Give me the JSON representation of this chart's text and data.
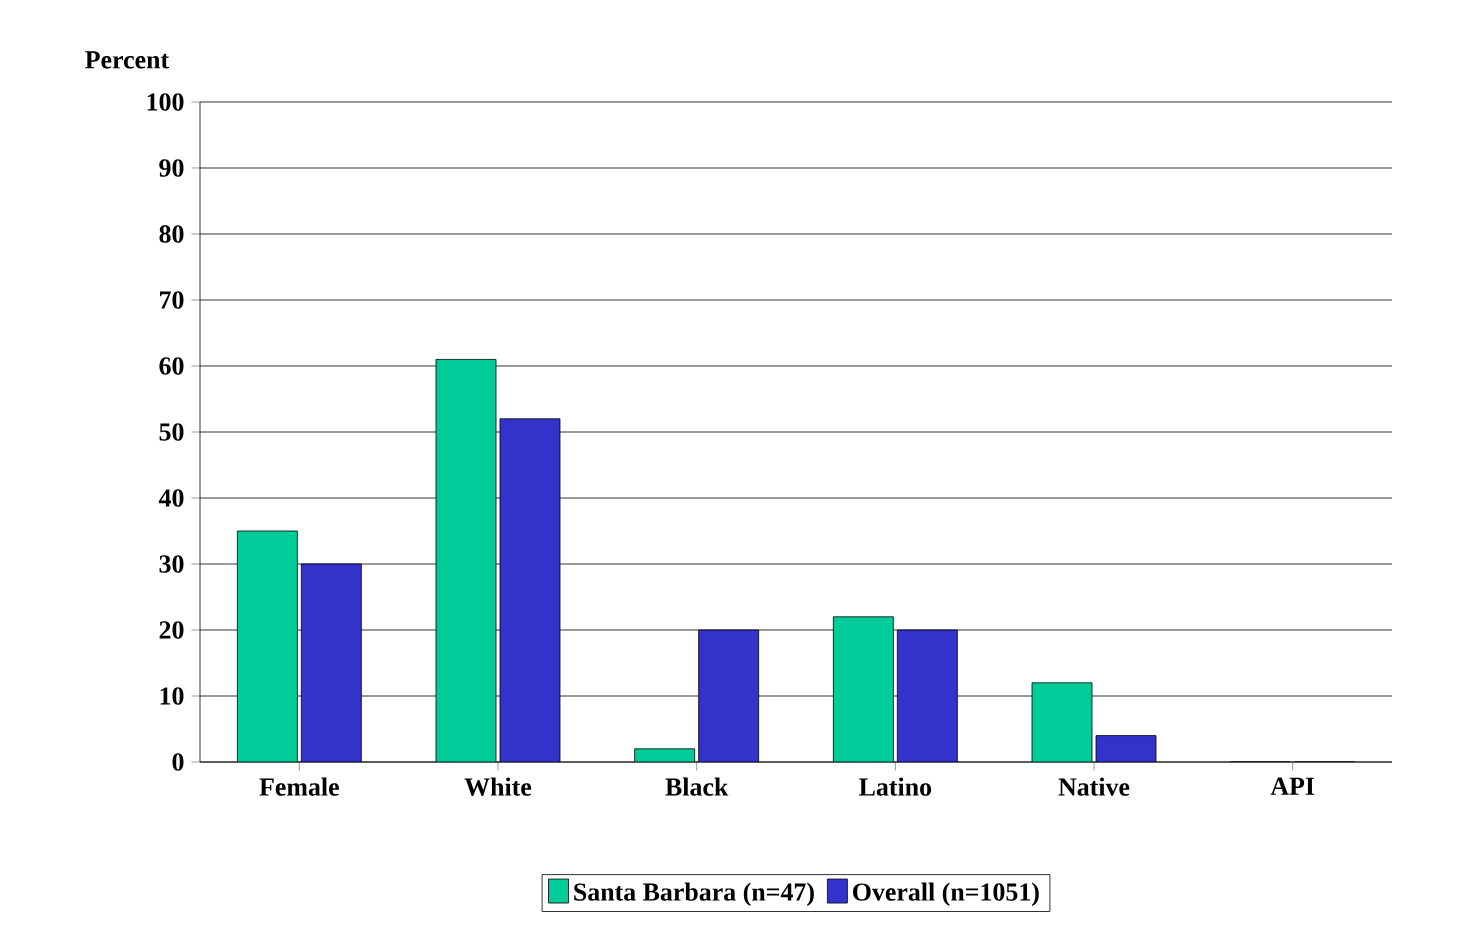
{
  "chart_data": {
    "type": "bar",
    "ylabel": "Percent",
    "categories": [
      "Female",
      "White",
      "Black",
      "Latino",
      "Native",
      "API"
    ],
    "series": [
      {
        "name": "Santa Barbara (n=47)",
        "color": "#00cc99",
        "values": [
          35,
          61,
          2,
          22,
          12,
          0
        ]
      },
      {
        "name": "Overall (n=1051)",
        "color": "#3333cc",
        "values": [
          30,
          52,
          20,
          20,
          4,
          0
        ]
      }
    ],
    "ylim": [
      0,
      100
    ],
    "yticks": [
      0,
      10,
      20,
      30,
      40,
      50,
      60,
      70,
      80,
      90,
      100
    ],
    "grid": "y",
    "legend": "bottom"
  }
}
